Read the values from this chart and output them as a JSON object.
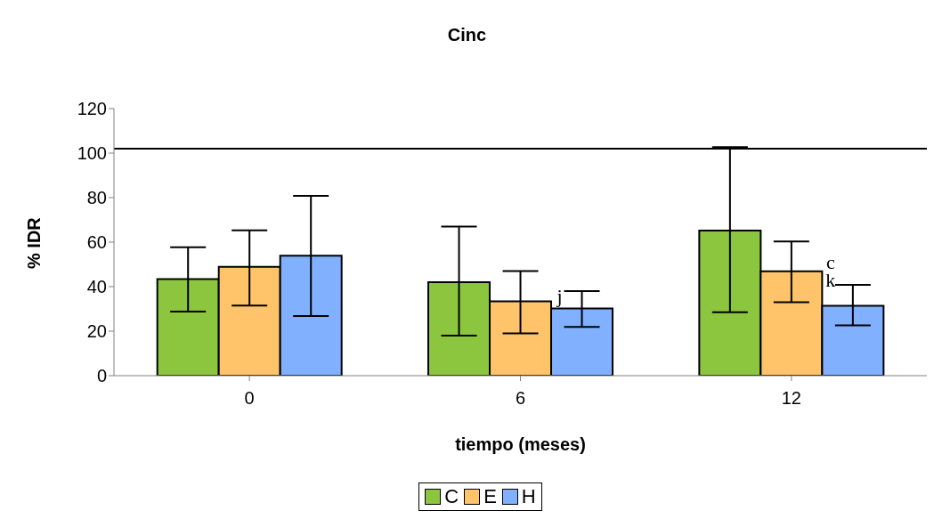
{
  "chart_data": {
    "type": "bar",
    "title": "Cinc",
    "xlabel": "tiempo (meses)",
    "ylabel": "% IDR",
    "categories": [
      "0",
      "6",
      "12"
    ],
    "series": [
      {
        "name": "C",
        "color": "#8cc63f",
        "values": [
          43.4,
          42,
          65.2
        ],
        "errors": [
          [
            28.8,
            57.7
          ],
          [
            18,
            67
          ],
          [
            28.5,
            102.7
          ]
        ]
      },
      {
        "name": "E",
        "color": "#ffc46a",
        "values": [
          48.9,
          33.4,
          46.9
        ],
        "errors": [
          [
            31.5,
            65.3
          ],
          [
            19,
            47
          ],
          [
            33,
            60.3
          ]
        ]
      },
      {
        "name": "H",
        "color": "#80b0ff",
        "values": [
          53.9,
          30.2,
          31.4
        ],
        "errors": [
          [
            26.8,
            80.8
          ],
          [
            21.9,
            38
          ],
          [
            22.6,
            40.8
          ]
        ]
      }
    ],
    "ylim": [
      0,
      120
    ],
    "yticks": [
      0,
      20,
      40,
      60,
      80,
      100,
      120
    ],
    "ref_lines": [
      {
        "axis": "y",
        "value": 102,
        "color": "#000000"
      }
    ],
    "annotations": [
      {
        "text": "j",
        "x": "6",
        "y": 36
      },
      {
        "text": "c",
        "x": "12",
        "y": 51
      },
      {
        "text": "k",
        "x": "12",
        "y": 43
      }
    ],
    "legend": "bottom",
    "grid": false
  }
}
